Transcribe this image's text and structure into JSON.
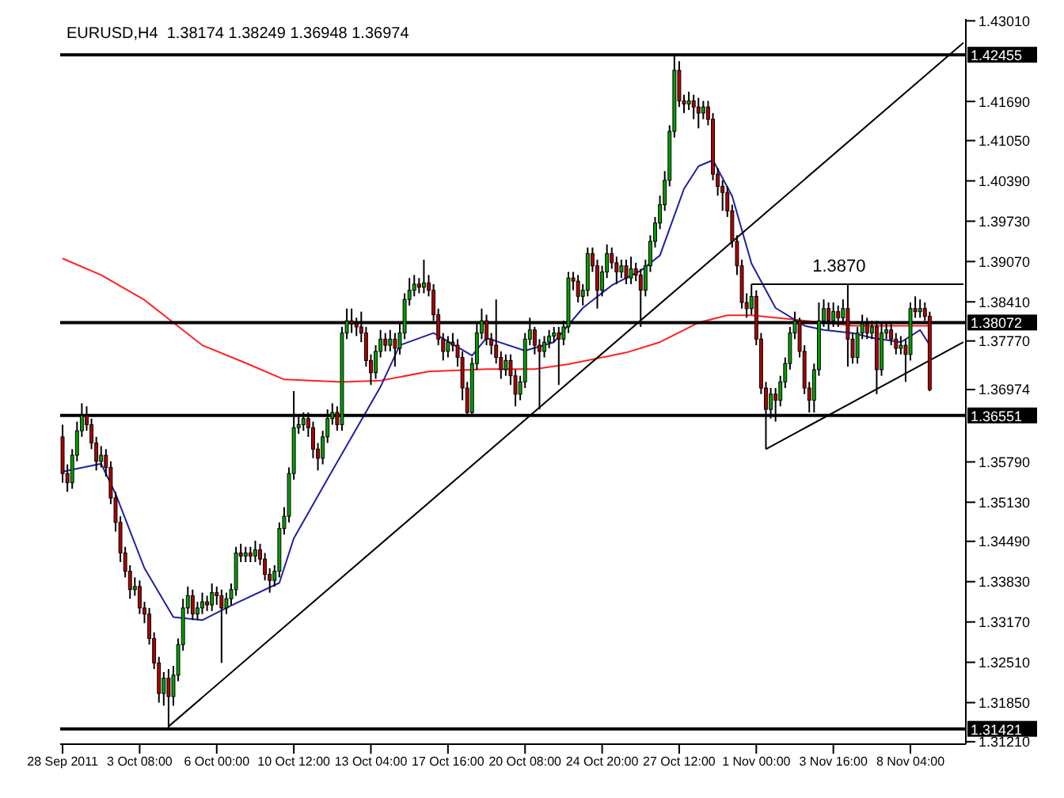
{
  "chart_data": {
    "type": "candlestick",
    "title": "EURUSD,H4  1.38174 1.38249 1.36948 1.36974",
    "categories": [
      "28 Sep 2011",
      null,
      null,
      null,
      null,
      null,
      null,
      null,
      null,
      null,
      null,
      null,
      null,
      null,
      null,
      null,
      "3 Oct 08:00",
      null,
      null,
      null,
      null,
      null,
      null,
      null,
      null,
      null,
      null,
      null,
      null,
      null,
      null,
      null,
      "6 Oct 00:00",
      null,
      null,
      null,
      null,
      null,
      null,
      null,
      null,
      null,
      null,
      null,
      null,
      null,
      null,
      null,
      "10 Oct 12:00",
      null,
      null,
      null,
      null,
      null,
      null,
      null,
      null,
      null,
      null,
      null,
      null,
      null,
      null,
      null,
      "13 Oct 04:00",
      null,
      null,
      null,
      null,
      null,
      null,
      null,
      null,
      null,
      null,
      null,
      null,
      null,
      null,
      null,
      "17 Oct 16:00",
      null,
      null,
      null,
      null,
      null,
      null,
      null,
      null,
      null,
      null,
      null,
      null,
      null,
      null,
      null,
      "20 Oct 08:00",
      null,
      null,
      null,
      null,
      null,
      null,
      null,
      null,
      null,
      null,
      null,
      null,
      null,
      null,
      null,
      "24 Oct 20:00",
      null,
      null,
      null,
      null,
      null,
      null,
      null,
      null,
      null,
      null,
      null,
      null,
      null,
      null,
      null,
      "27 Oct 12:00",
      null,
      null,
      null,
      null,
      null,
      null,
      null,
      null,
      null,
      null,
      null,
      null,
      null,
      null,
      null,
      "1 Nov 00:00",
      null,
      null,
      null,
      null,
      null,
      null,
      null,
      null,
      null,
      null,
      null,
      null,
      null,
      null,
      null,
      "3 Nov 16:00",
      null,
      null,
      null,
      null,
      null,
      null,
      null,
      null,
      null,
      null,
      null,
      null,
      null,
      null,
      null,
      "8 Nov 04:00",
      null,
      null,
      null,
      null,
      null,
      null,
      null,
      null,
      null,
      null,
      null
    ],
    "ohlc": [
      [
        1.362,
        1.364,
        1.3545,
        1.356
      ],
      [
        1.356,
        1.3575,
        1.353,
        1.3545
      ],
      [
        1.3545,
        1.36,
        1.3535,
        1.359
      ],
      [
        1.359,
        1.3645,
        1.358,
        1.363
      ],
      [
        1.363,
        1.3675,
        1.362,
        1.3655
      ],
      [
        1.3655,
        1.367,
        1.363,
        1.364
      ],
      [
        1.364,
        1.365,
        1.36,
        1.361
      ],
      [
        1.361,
        1.362,
        1.3565,
        1.358
      ],
      [
        1.358,
        1.3605,
        1.357,
        1.359
      ],
      [
        1.359,
        1.36,
        1.3555,
        1.357
      ],
      [
        1.357,
        1.358,
        1.351,
        1.352
      ],
      [
        1.352,
        1.353,
        1.3465,
        1.348
      ],
      [
        1.348,
        1.349,
        1.3415,
        1.343
      ],
      [
        1.343,
        1.344,
        1.339,
        1.34
      ],
      [
        1.34,
        1.341,
        1.3355,
        1.337
      ],
      [
        1.337,
        1.339,
        1.336,
        1.3375
      ],
      [
        1.3375,
        1.3385,
        1.333,
        1.334
      ],
      [
        1.334,
        1.335,
        1.3315,
        1.333
      ],
      [
        1.333,
        1.334,
        1.328,
        1.329
      ],
      [
        1.329,
        1.33,
        1.324,
        1.325
      ],
      [
        1.325,
        1.326,
        1.3185,
        1.32
      ],
      [
        1.32,
        1.3235,
        1.318,
        1.3225
      ],
      [
        1.3225,
        1.324,
        1.3142,
        1.3195
      ],
      [
        1.3195,
        1.3245,
        1.318,
        1.323
      ],
      [
        1.323,
        1.329,
        1.322,
        1.328
      ],
      [
        1.328,
        1.3355,
        1.327,
        1.334
      ],
      [
        1.334,
        1.3375,
        1.333,
        1.336
      ],
      [
        1.336,
        1.337,
        1.332,
        1.333
      ],
      [
        1.333,
        1.335,
        1.332,
        1.334
      ],
      [
        1.334,
        1.3365,
        1.333,
        1.335
      ],
      [
        1.335,
        1.336,
        1.3335,
        1.3345
      ],
      [
        1.3345,
        1.338,
        1.3335,
        1.3365
      ],
      [
        1.3365,
        1.3375,
        1.3345,
        1.336
      ],
      [
        1.336,
        1.337,
        1.325,
        1.334
      ],
      [
        1.334,
        1.3365,
        1.333,
        1.3355
      ],
      [
        1.3355,
        1.338,
        1.3345,
        1.337
      ],
      [
        1.337,
        1.344,
        1.336,
        1.343
      ],
      [
        1.343,
        1.3445,
        1.3415,
        1.3425
      ],
      [
        1.3425,
        1.344,
        1.3415,
        1.343
      ],
      [
        1.343,
        1.344,
        1.3415,
        1.3425
      ],
      [
        1.3425,
        1.345,
        1.3415,
        1.3435
      ],
      [
        1.3435,
        1.3445,
        1.341,
        1.342
      ],
      [
        1.342,
        1.343,
        1.3385,
        1.3395
      ],
      [
        1.3395,
        1.3405,
        1.3365,
        1.3385
      ],
      [
        1.3385,
        1.341,
        1.3375,
        1.34
      ],
      [
        1.34,
        1.348,
        1.339,
        1.347
      ],
      [
        1.347,
        1.3505,
        1.346,
        1.349
      ],
      [
        1.349,
        1.357,
        1.348,
        1.356
      ],
      [
        1.356,
        1.3695,
        1.355,
        1.3635
      ],
      [
        1.3635,
        1.3655,
        1.3625,
        1.364
      ],
      [
        1.364,
        1.366,
        1.363,
        1.365
      ],
      [
        1.365,
        1.366,
        1.362,
        1.3635
      ],
      [
        1.3635,
        1.3645,
        1.3585,
        1.36
      ],
      [
        1.36,
        1.361,
        1.3565,
        1.3585
      ],
      [
        1.3585,
        1.363,
        1.3575,
        1.362
      ],
      [
        1.362,
        1.3665,
        1.361,
        1.365
      ],
      [
        1.365,
        1.3675,
        1.364,
        1.366
      ],
      [
        1.366,
        1.367,
        1.363,
        1.364
      ],
      [
        1.364,
        1.38,
        1.363,
        1.379
      ],
      [
        1.379,
        1.383,
        1.378,
        1.381
      ],
      [
        1.381,
        1.383,
        1.379,
        1.3805
      ],
      [
        1.3805,
        1.3815,
        1.3785,
        1.38
      ],
      [
        1.38,
        1.3825,
        1.3775,
        1.379
      ],
      [
        1.379,
        1.38,
        1.3735,
        1.3745
      ],
      [
        1.3745,
        1.3755,
        1.3705,
        1.3725
      ],
      [
        1.3725,
        1.377,
        1.3715,
        1.376
      ],
      [
        1.376,
        1.3795,
        1.375,
        1.378
      ],
      [
        1.378,
        1.379,
        1.376,
        1.377
      ],
      [
        1.377,
        1.3795,
        1.376,
        1.378
      ],
      [
        1.378,
        1.379,
        1.3735,
        1.3765
      ],
      [
        1.3765,
        1.3805,
        1.3755,
        1.379
      ],
      [
        1.379,
        1.3855,
        1.378,
        1.3845
      ],
      [
        1.3845,
        1.388,
        1.3835,
        1.386
      ],
      [
        1.386,
        1.3885,
        1.385,
        1.387
      ],
      [
        1.387,
        1.388,
        1.3855,
        1.3865
      ],
      [
        1.3865,
        1.391,
        1.3855,
        1.3872
      ],
      [
        1.3872,
        1.3885,
        1.385,
        1.386
      ],
      [
        1.386,
        1.387,
        1.381,
        1.382
      ],
      [
        1.382,
        1.383,
        1.377,
        1.378
      ],
      [
        1.378,
        1.379,
        1.3745,
        1.376
      ],
      [
        1.376,
        1.3785,
        1.375,
        1.3775
      ],
      [
        1.3775,
        1.379,
        1.376,
        1.377
      ],
      [
        1.377,
        1.378,
        1.3735,
        1.375
      ],
      [
        1.375,
        1.376,
        1.368,
        1.37
      ],
      [
        1.37,
        1.371,
        1.3655,
        1.366
      ],
      [
        1.366,
        1.375,
        1.3655,
        1.374
      ],
      [
        1.374,
        1.3805,
        1.373,
        1.379
      ],
      [
        1.379,
        1.383,
        1.378,
        1.381
      ],
      [
        1.381,
        1.382,
        1.377,
        1.378
      ],
      [
        1.378,
        1.379,
        1.3755,
        1.377
      ],
      [
        1.377,
        1.3845,
        1.374,
        1.375
      ],
      [
        1.375,
        1.376,
        1.3715,
        1.373
      ],
      [
        1.373,
        1.3755,
        1.372,
        1.3745
      ],
      [
        1.3745,
        1.3755,
        1.3705,
        1.372
      ],
      [
        1.372,
        1.373,
        1.367,
        1.369
      ],
      [
        1.369,
        1.372,
        1.368,
        1.371
      ],
      [
        1.371,
        1.379,
        1.37,
        1.378
      ],
      [
        1.378,
        1.3815,
        1.377,
        1.3795
      ],
      [
        1.3795,
        1.38,
        1.3755,
        1.377
      ],
      [
        1.377,
        1.378,
        1.3665,
        1.376
      ],
      [
        1.376,
        1.3785,
        1.375,
        1.3775
      ],
      [
        1.3775,
        1.3795,
        1.3765,
        1.3785
      ],
      [
        1.3785,
        1.38,
        1.3775,
        1.379
      ],
      [
        1.379,
        1.38,
        1.3705,
        1.378
      ],
      [
        1.378,
        1.381,
        1.377,
        1.38
      ],
      [
        1.38,
        1.389,
        1.379,
        1.388
      ],
      [
        1.388,
        1.389,
        1.386,
        1.3875
      ],
      [
        1.3875,
        1.3885,
        1.384,
        1.385
      ],
      [
        1.385,
        1.387,
        1.3835,
        1.386
      ],
      [
        1.386,
        1.393,
        1.385,
        1.392
      ],
      [
        1.392,
        1.393,
        1.389,
        1.39
      ],
      [
        1.39,
        1.391,
        1.383,
        1.386
      ],
      [
        1.386,
        1.39,
        1.385,
        1.389
      ],
      [
        1.389,
        1.3935,
        1.388,
        1.392
      ],
      [
        1.392,
        1.393,
        1.3895,
        1.3905
      ],
      [
        1.3905,
        1.3915,
        1.387,
        1.389
      ],
      [
        1.389,
        1.391,
        1.388,
        1.39
      ],
      [
        1.39,
        1.391,
        1.387,
        1.388
      ],
      [
        1.388,
        1.3915,
        1.387,
        1.3895
      ],
      [
        1.3895,
        1.3905,
        1.3875,
        1.3885
      ],
      [
        1.3885,
        1.3895,
        1.38,
        1.386
      ],
      [
        1.386,
        1.391,
        1.385,
        1.39
      ],
      [
        1.39,
        1.395,
        1.389,
        1.394
      ],
      [
        1.394,
        1.398,
        1.393,
        1.397
      ],
      [
        1.397,
        1.4015,
        1.396,
        1.4
      ],
      [
        1.4,
        1.4055,
        1.399,
        1.404
      ],
      [
        1.404,
        1.413,
        1.403,
        1.412
      ],
      [
        1.412,
        1.42455,
        1.411,
        1.422
      ],
      [
        1.422,
        1.4235,
        1.416,
        1.417
      ],
      [
        1.417,
        1.418,
        1.415,
        1.4165
      ],
      [
        1.4165,
        1.4185,
        1.4155,
        1.417
      ],
      [
        1.417,
        1.418,
        1.414,
        1.416
      ],
      [
        1.416,
        1.4175,
        1.4125,
        1.415
      ],
      [
        1.415,
        1.417,
        1.414,
        1.416
      ],
      [
        1.416,
        1.417,
        1.413,
        1.414
      ],
      [
        1.414,
        1.415,
        1.404,
        1.405
      ],
      [
        1.405,
        1.406,
        1.4015,
        1.403
      ],
      [
        1.403,
        1.404,
        1.399,
        1.402
      ],
      [
        1.402,
        1.403,
        1.398,
        1.399
      ],
      [
        1.399,
        1.4,
        1.393,
        1.394
      ],
      [
        1.394,
        1.395,
        1.3885,
        1.39
      ],
      [
        1.39,
        1.391,
        1.383,
        1.384
      ],
      [
        1.384,
        1.3855,
        1.3815,
        1.383
      ],
      [
        1.383,
        1.387,
        1.382,
        1.385
      ],
      [
        1.385,
        1.386,
        1.377,
        1.378
      ],
      [
        1.378,
        1.379,
        1.369,
        1.37
      ],
      [
        1.37,
        1.371,
        1.36,
        1.3665
      ],
      [
        1.3665,
        1.37,
        1.365,
        1.369
      ],
      [
        1.369,
        1.37,
        1.3645,
        1.368
      ],
      [
        1.368,
        1.372,
        1.367,
        1.371
      ],
      [
        1.371,
        1.375,
        1.37,
        1.374
      ],
      [
        1.374,
        1.38,
        1.373,
        1.379
      ],
      [
        1.379,
        1.3825,
        1.378,
        1.381
      ],
      [
        1.381,
        1.3815,
        1.375,
        1.376
      ],
      [
        1.376,
        1.377,
        1.369,
        1.37
      ],
      [
        1.37,
        1.371,
        1.366,
        1.368
      ],
      [
        1.368,
        1.374,
        1.366,
        1.373
      ],
      [
        1.373,
        1.384,
        1.372,
        1.381
      ],
      [
        1.381,
        1.3845,
        1.38,
        1.383
      ],
      [
        1.383,
        1.384,
        1.3795,
        1.381
      ],
      [
        1.381,
        1.384,
        1.38,
        1.3825
      ],
      [
        1.3825,
        1.3835,
        1.38,
        1.3815
      ],
      [
        1.3815,
        1.3845,
        1.3805,
        1.383
      ],
      [
        1.383,
        1.387,
        1.3735,
        1.378
      ],
      [
        1.378,
        1.379,
        1.374,
        1.375
      ],
      [
        1.375,
        1.38,
        1.374,
        1.379
      ],
      [
        1.379,
        1.382,
        1.378,
        1.3805
      ],
      [
        1.3805,
        1.3815,
        1.378,
        1.379
      ],
      [
        1.379,
        1.381,
        1.378,
        1.38
      ],
      [
        1.38,
        1.381,
        1.369,
        1.373
      ],
      [
        1.373,
        1.3805,
        1.372,
        1.379
      ],
      [
        1.379,
        1.3805,
        1.378,
        1.3795
      ],
      [
        1.3795,
        1.3805,
        1.377,
        1.378
      ],
      [
        1.378,
        1.379,
        1.3755,
        1.3765
      ],
      [
        1.3765,
        1.3785,
        1.3755,
        1.377
      ],
      [
        1.377,
        1.378,
        1.371,
        1.3755
      ],
      [
        1.3755,
        1.384,
        1.3745,
        1.383
      ],
      [
        1.383,
        1.385,
        1.3815,
        1.3825
      ],
      [
        1.3825,
        1.3845,
        1.3815,
        1.383
      ],
      [
        1.383,
        1.384,
        1.381,
        1.38174
      ],
      [
        1.38174,
        1.38249,
        1.36948,
        1.36974
      ],
      null,
      null,
      null,
      null,
      null,
      null,
      null
    ],
    "series": [
      {
        "type": "line",
        "color": "#ff2020",
        "values": [
          1.3912,
          null,
          null,
          null,
          null,
          null,
          null,
          null,
          1.3885,
          null,
          null,
          null,
          null,
          null,
          null,
          null,
          null,
          1.3844,
          null,
          null,
          null,
          null,
          null,
          1.3807,
          null,
          null,
          null,
          null,
          null,
          1.377,
          null,
          null,
          null,
          null,
          null,
          null,
          null,
          null,
          1.3741,
          null,
          null,
          null,
          null,
          null,
          null,
          null,
          1.3714,
          null,
          null,
          null,
          null,
          null,
          null,
          null,
          null,
          null,
          null,
          null,
          1.371,
          null,
          null,
          null,
          null,
          null,
          null,
          null,
          1.3712,
          null,
          null,
          null,
          null,
          null,
          null,
          null,
          null,
          null,
          1.3727,
          null,
          null,
          null,
          null,
          null,
          null,
          null,
          null,
          null,
          null,
          null,
          1.3731,
          null,
          null,
          null,
          null,
          null,
          null,
          null,
          null,
          null,
          1.3731,
          null,
          null,
          null,
          null,
          null,
          null,
          1.3739,
          null,
          null,
          null,
          null,
          null,
          null,
          null,
          null,
          null,
          null,
          null,
          1.3758,
          null,
          null,
          null,
          null,
          null,
          null,
          1.3775,
          null,
          null,
          null,
          null,
          null,
          null,
          null,
          1.3807,
          null,
          null,
          null,
          null,
          null,
          1.3819,
          null,
          null,
          null,
          null,
          1.3819,
          null,
          null,
          null,
          null,
          null,
          null,
          null,
          null,
          1.3812,
          null,
          null,
          null,
          null,
          null,
          1.3807,
          null,
          null,
          null,
          null,
          null,
          1.3802,
          null,
          null,
          null,
          null,
          null,
          null,
          null,
          null,
          null,
          null,
          null,
          1.3802,
          null,
          null,
          null,
          1.3802,
          null,
          null,
          null,
          null,
          null,
          null,
          null
        ]
      },
      {
        "type": "line",
        "color": "#2020a0",
        "values": [
          1.3563,
          null,
          null,
          null,
          null,
          null,
          null,
          null,
          1.3576,
          null,
          null,
          1.3527,
          null,
          null,
          null,
          null,
          null,
          1.3405,
          null,
          null,
          null,
          null,
          null,
          1.3325,
          null,
          null,
          null,
          null,
          null,
          1.332,
          null,
          null,
          null,
          null,
          null,
          1.3344,
          null,
          null,
          null,
          null,
          null,
          null,
          null,
          null,
          null,
          1.3381,
          null,
          null,
          1.3454,
          null,
          null,
          null,
          null,
          null,
          null,
          1.3551,
          null,
          null,
          null,
          null,
          null,
          null,
          null,
          1.3661,
          null,
          null,
          1.3702,
          null,
          null,
          null,
          1.377,
          null,
          null,
          null,
          null,
          null,
          null,
          1.379,
          null,
          null,
          null,
          null,
          null,
          null,
          null,
          1.3753,
          null,
          null,
          1.3782,
          null,
          null,
          null,
          null,
          null,
          null,
          null,
          1.3761,
          null,
          null,
          null,
          null,
          null,
          1.3775,
          null,
          null,
          null,
          null,
          null,
          1.3831,
          null,
          null,
          null,
          null,
          null,
          1.3868,
          null,
          null,
          null,
          null,
          null,
          1.3892,
          null,
          null,
          null,
          1.3917,
          null,
          null,
          null,
          null,
          1.4026,
          null,
          null,
          1.4063,
          null,
          null,
          1.4073,
          null,
          null,
          null,
          1.4014,
          null,
          null,
          null,
          1.3904,
          null,
          null,
          null,
          null,
          1.3831,
          null,
          null,
          null,
          null,
          null,
          1.3802,
          null,
          null,
          null,
          1.3795,
          null,
          null,
          null,
          null,
          null,
          1.379,
          null,
          null,
          null,
          1.3782,
          null,
          null,
          null,
          null,
          null,
          1.3775,
          null,
          null,
          null,
          1.3795,
          null,
          1.377,
          null,
          null,
          null,
          null,
          null,
          null,
          null
        ]
      },
      {
        "type": "line",
        "color": "#000000",
        "values": [
          null,
          null,
          null,
          null,
          null,
          null,
          null,
          null,
          null,
          null,
          null,
          null,
          null,
          null,
          null,
          null,
          null,
          null,
          null,
          null,
          null,
          null,
          1.3146,
          null,
          null,
          null,
          null,
          null,
          null,
          null,
          null,
          null,
          null,
          null,
          null,
          null,
          null,
          null,
          null,
          null,
          null,
          null,
          null,
          null,
          null,
          null,
          null,
          null,
          null,
          null,
          null,
          null,
          null,
          null,
          null,
          null,
          null,
          null,
          null,
          null,
          null,
          null,
          null,
          null,
          null,
          null,
          null,
          null,
          null,
          null,
          null,
          null,
          null,
          null,
          null,
          null,
          null,
          null,
          null,
          null,
          null,
          null,
          null,
          null,
          null,
          null,
          null,
          null,
          null,
          null,
          null,
          null,
          null,
          null,
          null,
          null,
          null,
          null,
          null,
          null,
          null,
          null,
          null,
          null,
          null,
          null,
          null,
          null,
          null,
          null,
          null,
          null,
          null,
          null,
          null,
          null,
          null,
          null,
          null,
          null,
          null,
          null,
          null,
          null,
          null,
          null,
          null,
          null,
          null,
          null,
          null,
          null,
          null,
          null,
          null,
          null,
          null,
          null,
          null,
          null,
          null,
          null,
          null,
          null,
          null,
          null,
          null,
          null,
          null,
          null,
          null,
          null,
          null,
          null,
          null,
          null,
          null,
          null,
          null,
          null,
          null,
          null,
          null,
          null,
          null,
          null,
          null,
          null,
          null,
          null,
          null,
          null,
          null,
          null,
          null,
          null,
          null,
          null,
          null,
          null,
          null,
          null,
          null,
          null,
          null,
          null,
          null,
          1.4265
        ]
      },
      {
        "type": "line",
        "color": "#000000",
        "values": [
          null,
          null,
          null,
          null,
          null,
          null,
          null,
          null,
          null,
          null,
          null,
          null,
          null,
          null,
          null,
          null,
          null,
          null,
          null,
          null,
          null,
          null,
          null,
          null,
          null,
          null,
          null,
          null,
          null,
          null,
          null,
          null,
          null,
          null,
          null,
          null,
          null,
          null,
          null,
          null,
          null,
          null,
          null,
          null,
          null,
          null,
          null,
          null,
          null,
          null,
          null,
          null,
          null,
          null,
          null,
          null,
          null,
          null,
          null,
          null,
          null,
          null,
          null,
          null,
          null,
          null,
          null,
          null,
          null,
          null,
          null,
          null,
          null,
          null,
          null,
          null,
          null,
          null,
          null,
          null,
          null,
          null,
          null,
          null,
          null,
          null,
          null,
          null,
          null,
          null,
          null,
          null,
          null,
          null,
          null,
          null,
          null,
          null,
          null,
          null,
          null,
          null,
          null,
          null,
          null,
          null,
          null,
          null,
          null,
          null,
          null,
          null,
          null,
          null,
          null,
          null,
          null,
          null,
          null,
          null,
          null,
          null,
          null,
          null,
          null,
          null,
          null,
          null,
          null,
          null,
          null,
          null,
          null,
          null,
          null,
          null,
          null,
          null,
          null,
          null,
          null,
          null,
          null,
          null,
          null,
          null,
          1.36,
          null,
          null,
          null,
          null,
          null,
          null,
          null,
          null,
          null,
          null,
          null,
          null,
          null,
          null,
          null,
          null,
          null,
          null,
          null,
          null,
          null,
          null,
          null,
          null,
          null,
          null,
          null,
          null,
          null,
          null,
          null,
          null,
          null,
          null,
          null,
          null,
          null,
          null,
          null,
          null,
          1.3775
        ]
      },
      {
        "type": "line",
        "color": "#000000",
        "values": [
          null,
          null,
          null,
          null,
          null,
          null,
          null,
          null,
          null,
          null,
          null,
          null,
          null,
          null,
          null,
          null,
          null,
          null,
          null,
          null,
          null,
          null,
          null,
          null,
          null,
          null,
          null,
          null,
          null,
          null,
          null,
          null,
          null,
          null,
          null,
          null,
          null,
          null,
          null,
          null,
          null,
          null,
          null,
          null,
          null,
          null,
          null,
          null,
          null,
          null,
          null,
          null,
          null,
          null,
          null,
          null,
          null,
          null,
          null,
          null,
          null,
          null,
          null,
          null,
          null,
          null,
          null,
          null,
          null,
          null,
          null,
          null,
          null,
          null,
          null,
          null,
          null,
          null,
          null,
          null,
          null,
          null,
          null,
          null,
          null,
          null,
          null,
          null,
          null,
          null,
          null,
          null,
          null,
          null,
          null,
          null,
          null,
          null,
          null,
          null,
          null,
          null,
          null,
          null,
          null,
          null,
          null,
          null,
          null,
          null,
          null,
          null,
          null,
          null,
          null,
          null,
          null,
          null,
          null,
          null,
          null,
          null,
          null,
          null,
          null,
          null,
          null,
          null,
          null,
          null,
          null,
          null,
          null,
          null,
          null,
          null,
          null,
          null,
          null,
          null,
          null,
          null,
          null,
          1.387,
          null,
          null,
          null,
          null,
          null,
          null,
          null,
          null,
          null,
          null,
          null,
          null,
          null,
          null,
          null,
          null,
          null,
          null,
          null,
          null,
          null,
          null,
          null,
          null,
          null,
          null,
          null,
          null,
          null,
          null,
          null,
          null,
          null,
          null,
          null,
          null,
          null,
          null,
          null,
          null,
          null,
          null,
          null,
          1.387
        ]
      }
    ],
    "annotations": [
      {
        "text": "1.3870",
        "y": 1.387
      }
    ],
    "ref_lines": [
      {
        "axis": "y",
        "value": 1.42455,
        "label": "1.42455",
        "color": "#000000"
      },
      {
        "axis": "y",
        "value": 1.38072,
        "label": "1.38072",
        "color": "#000000"
      },
      {
        "axis": "y",
        "value": 1.36551,
        "label": "1.36551",
        "color": "#000000"
      },
      {
        "axis": "y",
        "value": 1.31421,
        "label": "1.31421",
        "color": "#000000"
      }
    ],
    "ylim": [
      1.3117,
      1.4304
    ],
    "yticks": [
      {
        "value": 1.4301,
        "label": "1.43010"
      },
      {
        "value": 1.4169,
        "label": "1.41690"
      },
      {
        "value": 1.4105,
        "label": "1.41050"
      },
      {
        "value": 1.4039,
        "label": "1.40390"
      },
      {
        "value": 1.3973,
        "label": "1.39730"
      },
      {
        "value": 1.3907,
        "label": "1.39070"
      },
      {
        "value": 1.3841,
        "label": "1.38410"
      },
      {
        "value": 1.3777,
        "label": "1.37770"
      },
      {
        "value": 1.36974,
        "label": "1.36974"
      },
      {
        "value": 1.3579,
        "label": "1.35790"
      },
      {
        "value": 1.3513,
        "label": "1.35130"
      },
      {
        "value": 1.3449,
        "label": "1.34490"
      },
      {
        "value": 1.3383,
        "label": "1.33830"
      },
      {
        "value": 1.3317,
        "label": "1.33170"
      },
      {
        "value": 1.3251,
        "label": "1.32510"
      },
      {
        "value": 1.3185,
        "label": "1.31850"
      },
      {
        "value": 1.3121,
        "label": "1.31210"
      }
    ]
  }
}
